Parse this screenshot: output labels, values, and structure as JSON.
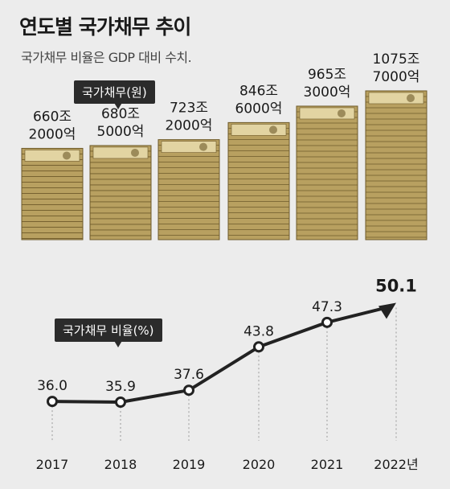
{
  "title": "연도별 국가채무 추이",
  "subtitle": "국가채무 비율은 GDP 대비 수치.",
  "debt_label": "국가채무(원)",
  "ratio_label": "국가채무 비율(%)",
  "chart_data": [
    {
      "type": "bar",
      "title": "국가채무(원)",
      "categories": [
        "2017",
        "2018",
        "2019",
        "2020",
        "2021",
        "2022년"
      ],
      "values": [
        660.2,
        680.5,
        723.2,
        846.6,
        965.3,
        1075.7
      ],
      "value_labels": [
        [
          "660조",
          "2000억"
        ],
        [
          "680조",
          "5000억"
        ],
        [
          "723조",
          "2000억"
        ],
        [
          "846조",
          "6000억"
        ],
        [
          "965조",
          "3000억"
        ],
        [
          "1075조",
          "7000억"
        ]
      ]
    },
    {
      "type": "line",
      "title": "국가채무 비율(%)",
      "categories": [
        "2017",
        "2018",
        "2019",
        "2020",
        "2021",
        "2022년"
      ],
      "values": [
        36.0,
        35.9,
        37.6,
        43.8,
        47.3,
        50.1
      ],
      "value_labels": [
        "36.0",
        "35.9",
        "37.6",
        "43.8",
        "47.3",
        "50.1"
      ]
    }
  ],
  "colors": {
    "line": "#222222",
    "bill": "#b8a060",
    "bill_dark": "#6e5a2a",
    "bill_light": "#e2d4a2"
  }
}
